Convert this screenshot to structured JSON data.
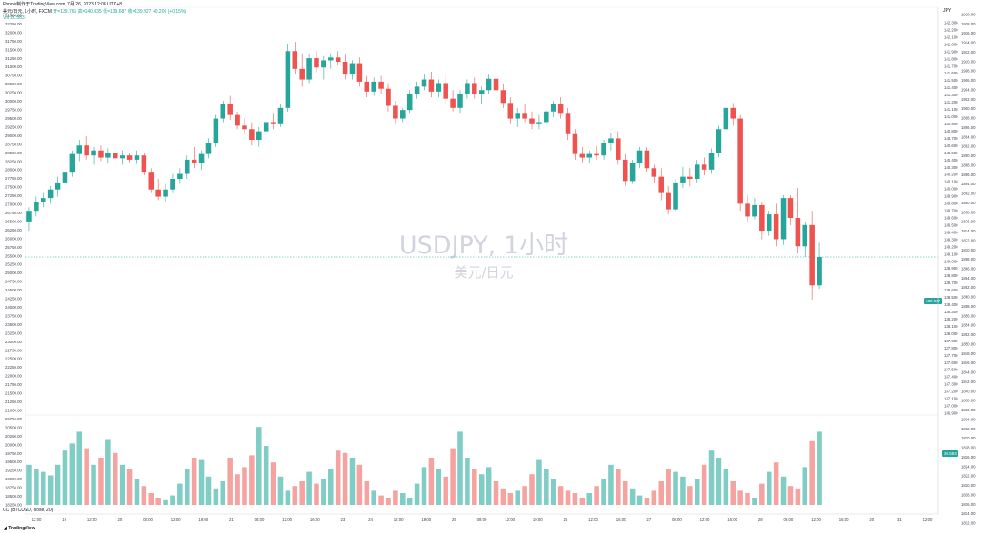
{
  "header": {
    "publisher": "Phnoix制作于TradingView.com, 7月 26, 2023 12:08 UTC+8",
    "symbol_line": "美元/日元, 1小时, FXCM",
    "ohlc": "开=139.765  高=140.035  低=139.687  收=139.927  +0.206 (+0.15%)",
    "volume_line": "Vol  20.583"
  },
  "watermark": {
    "title": "USDJPY, 1小时",
    "subtitle": "美元/日元"
  },
  "right_axis": {
    "label": "JPY"
  },
  "price_tag": "139.927",
  "price_tag_sub": "20.583",
  "oscillator": {
    "label": "CC (BTCUSD, close, 20)"
  },
  "logo": "TradingView",
  "colors": {
    "up": "#26a69a",
    "down": "#ef5350",
    "up_vol": "#7fcdc4",
    "down_vol": "#f5a3a1"
  },
  "chart_data": {
    "type": "candlestick",
    "left_axis_ticks": [
      "32500.00",
      "32250.00",
      "32000.00",
      "31750.00",
      "31500.00",
      "31250.00",
      "31000.00",
      "30750.00",
      "30500.00",
      "30250.00",
      "30000.00",
      "29750.00",
      "29500.00",
      "29250.00",
      "29000.00",
      "28750.00",
      "28500.00",
      "28250.00",
      "28000.00",
      "27750.00",
      "27500.00",
      "27250.00",
      "27000.00",
      "26750.00",
      "26500.00",
      "26250.00",
      "26000.00",
      "25750.00",
      "25500.00",
      "25250.00",
      "25000.00",
      "24750.00",
      "24500.00",
      "24250.00",
      "24000.00",
      "23750.00",
      "23500.00",
      "23250.00",
      "23000.00",
      "22750.00",
      "22500.00",
      "22250.00",
      "22000.00",
      "21750.00",
      "21500.00",
      "21250.00",
      "21000.00",
      "20750.00",
      "20500.00",
      "20250.00",
      "20000.00",
      "19750.00",
      "19500.00",
      "19250.00",
      "19000.00",
      "18750.00",
      "18500.00",
      "18250.00"
    ],
    "right_price_ticks": [
      "142.300",
      "142.200",
      "142.100",
      "142.000",
      "141.900",
      "141.800",
      "141.700",
      "141.600",
      "141.500",
      "141.400",
      "141.300",
      "141.200",
      "141.100",
      "141.000",
      "140.900",
      "140.800",
      "140.700",
      "140.600",
      "140.500",
      "140.400",
      "140.300",
      "140.200",
      "140.100",
      "140.000",
      "139.900",
      "139.800",
      "139.700",
      "139.600",
      "139.500",
      "139.400",
      "139.300",
      "139.200",
      "139.100",
      "139.000",
      "138.900",
      "138.800",
      "138.700",
      "138.600",
      "138.500",
      "138.400",
      "138.300",
      "138.200",
      "138.100",
      "138.000",
      "137.900",
      "137.800",
      "137.700",
      "137.600",
      "137.500",
      "137.400",
      "137.300",
      "137.200",
      "137.100",
      "137.000",
      "136.900"
    ],
    "right_osc_ticks": [
      "1920.00",
      "1918.00",
      "1916.00",
      "1914.00",
      "1912.00",
      "1910.00",
      "1908.00",
      "1906.00",
      "1904.00",
      "1902.00",
      "1900.00",
      "1898.00",
      "1896.00",
      "1894.00",
      "1892.00",
      "1890.00",
      "1888.00",
      "1886.00",
      "1884.00",
      "1882.00",
      "1880.00",
      "1878.00",
      "1876.00",
      "1874.00",
      "1872.00",
      "1870.00",
      "1868.00",
      "1866.00",
      "1864.00",
      "1862.00",
      "1860.00",
      "1858.00",
      "1856.00",
      "1854.00",
      "1852.00",
      "1850.00",
      "1848.00",
      "1846.00",
      "1844.00",
      "1842.00",
      "1840.00",
      "1838.00",
      "1836.00",
      "1834.00",
      "1832.00",
      "1830.00",
      "1828.00",
      "1826.00",
      "1824.00",
      "1822.00",
      "1820.00",
      "1818.00",
      "1816.00",
      "1814.00",
      "1812.00"
    ],
    "x_ticks": [
      "12:00",
      "19",
      "12:00",
      "20",
      "08:00",
      "12:00",
      "19:00",
      "21",
      "08:00",
      "12:00",
      "16:00",
      "23",
      "24",
      "12:00",
      "19:00",
      "25",
      "08:00",
      "12:00",
      "19:00",
      "26",
      "12:00",
      "16:00",
      "27",
      "08:00",
      "12:00",
      "16:00",
      "28",
      "08:00",
      "12:00",
      "16:00",
      "20",
      "31",
      "12:00"
    ],
    "ylim": [
      136.85,
      142.35
    ],
    "candles": [
      [
        139.55,
        139.75,
        139.42,
        139.7
      ],
      [
        139.7,
        139.9,
        139.62,
        139.82
      ],
      [
        139.82,
        139.95,
        139.75,
        139.88
      ],
      [
        139.88,
        140.05,
        139.8,
        140.0
      ],
      [
        140.0,
        140.18,
        139.9,
        140.1
      ],
      [
        140.1,
        140.3,
        140.02,
        140.25
      ],
      [
        140.25,
        140.55,
        140.18,
        140.5
      ],
      [
        140.5,
        140.7,
        140.4,
        140.62
      ],
      [
        140.62,
        140.75,
        140.42,
        140.48
      ],
      [
        140.48,
        140.6,
        140.35,
        140.55
      ],
      [
        140.55,
        140.62,
        140.4,
        140.45
      ],
      [
        140.45,
        140.58,
        140.38,
        140.52
      ],
      [
        140.52,
        140.6,
        140.4,
        140.44
      ],
      [
        140.44,
        140.55,
        140.35,
        140.48
      ],
      [
        140.48,
        140.52,
        140.38,
        140.42
      ],
      [
        140.42,
        140.55,
        140.36,
        140.48
      ],
      [
        140.48,
        140.52,
        140.2,
        140.25
      ],
      [
        140.25,
        140.3,
        139.95,
        140.0
      ],
      [
        140.0,
        140.15,
        139.85,
        139.9
      ],
      [
        139.9,
        140.08,
        139.82,
        140.0
      ],
      [
        140.0,
        140.22,
        139.95,
        140.15
      ],
      [
        140.15,
        140.3,
        140.08,
        140.22
      ],
      [
        140.22,
        140.48,
        140.15,
        140.42
      ],
      [
        140.42,
        140.6,
        140.3,
        140.38
      ],
      [
        140.38,
        140.55,
        140.28,
        140.5
      ],
      [
        140.5,
        140.72,
        140.44,
        140.65
      ],
      [
        140.65,
        141.05,
        140.6,
        141.0
      ],
      [
        141.0,
        141.25,
        140.95,
        141.2
      ],
      [
        141.2,
        141.32,
        140.98,
        141.05
      ],
      [
        141.05,
        141.1,
        140.85,
        140.9
      ],
      [
        140.9,
        141.0,
        140.78,
        140.85
      ],
      [
        140.85,
        140.95,
        140.62,
        140.7
      ],
      [
        140.7,
        140.88,
        140.6,
        140.82
      ],
      [
        140.82,
        141.05,
        140.75,
        140.95
      ],
      [
        140.95,
        141.08,
        140.85,
        140.92
      ],
      [
        140.92,
        141.2,
        140.88,
        141.15
      ],
      [
        141.15,
        142.05,
        141.1,
        141.95
      ],
      [
        141.95,
        142.08,
        141.62,
        141.7
      ],
      [
        141.7,
        141.92,
        141.45,
        141.55
      ],
      [
        141.55,
        141.9,
        141.5,
        141.85
      ],
      [
        141.85,
        141.95,
        141.65,
        141.72
      ],
      [
        141.72,
        141.88,
        141.55,
        141.82
      ],
      [
        141.82,
        141.92,
        141.7,
        141.86
      ],
      [
        141.86,
        141.95,
        141.75,
        141.8
      ],
      [
        141.8,
        141.9,
        141.55,
        141.62
      ],
      [
        141.62,
        141.82,
        141.55,
        141.78
      ],
      [
        141.78,
        141.86,
        141.45,
        141.52
      ],
      [
        141.52,
        141.6,
        141.3,
        141.38
      ],
      [
        141.38,
        141.58,
        141.32,
        141.52
      ],
      [
        141.52,
        141.6,
        141.35,
        141.42
      ],
      [
        141.42,
        141.5,
        141.1,
        141.18
      ],
      [
        141.18,
        141.25,
        140.92,
        141.0
      ],
      [
        141.0,
        141.15,
        140.95,
        141.12
      ],
      [
        141.12,
        141.4,
        141.08,
        141.35
      ],
      [
        141.35,
        141.52,
        141.28,
        141.45
      ],
      [
        141.45,
        141.62,
        141.4,
        141.55
      ],
      [
        141.55,
        141.66,
        141.3,
        141.38
      ],
      [
        141.38,
        141.55,
        141.3,
        141.5
      ],
      [
        141.5,
        141.62,
        141.2,
        141.28
      ],
      [
        141.28,
        141.4,
        141.1,
        141.15
      ],
      [
        141.15,
        141.4,
        141.08,
        141.35
      ],
      [
        141.35,
        141.55,
        141.28,
        141.5
      ],
      [
        141.5,
        141.58,
        141.28,
        141.35
      ],
      [
        141.35,
        141.45,
        141.2,
        141.4
      ],
      [
        141.4,
        141.62,
        141.35,
        141.56
      ],
      [
        141.56,
        141.75,
        141.3,
        141.4
      ],
      [
        141.4,
        141.48,
        141.15,
        141.22
      ],
      [
        141.22,
        141.3,
        140.92,
        141.0
      ],
      [
        141.0,
        141.15,
        140.88,
        141.08
      ],
      [
        141.08,
        141.2,
        140.95,
        141.0
      ],
      [
        141.0,
        141.1,
        140.85,
        140.92
      ],
      [
        140.92,
        141.05,
        140.85,
        140.95
      ],
      [
        140.95,
        141.15,
        140.9,
        141.1
      ],
      [
        141.1,
        141.25,
        141.02,
        141.2
      ],
      [
        141.2,
        141.3,
        141.0,
        141.08
      ],
      [
        141.08,
        141.15,
        140.7,
        140.78
      ],
      [
        140.78,
        140.85,
        140.42,
        140.5
      ],
      [
        140.5,
        140.6,
        140.38,
        140.45
      ],
      [
        140.45,
        140.55,
        140.38,
        140.5
      ],
      [
        140.5,
        140.62,
        140.42,
        140.48
      ],
      [
        140.48,
        140.7,
        140.42,
        140.65
      ],
      [
        140.65,
        140.8,
        140.55,
        140.72
      ],
      [
        140.72,
        140.82,
        140.35,
        140.42
      ],
      [
        140.42,
        140.5,
        140.05,
        140.12
      ],
      [
        140.12,
        140.42,
        140.08,
        140.38
      ],
      [
        140.38,
        140.6,
        140.3,
        140.55
      ],
      [
        140.55,
        140.6,
        140.25,
        140.3
      ],
      [
        140.3,
        140.35,
        140.1,
        140.18
      ],
      [
        140.18,
        140.3,
        139.85,
        139.95
      ],
      [
        139.95,
        140.05,
        139.65,
        139.72
      ],
      [
        139.72,
        140.15,
        139.68,
        140.1
      ],
      [
        140.1,
        140.32,
        140.02,
        140.18
      ],
      [
        140.18,
        140.3,
        140.05,
        140.15
      ],
      [
        140.15,
        140.42,
        140.1,
        140.35
      ],
      [
        140.35,
        140.45,
        140.2,
        140.28
      ],
      [
        140.28,
        140.58,
        140.22,
        140.52
      ],
      [
        140.52,
        140.9,
        140.45,
        140.85
      ],
      [
        140.85,
        141.22,
        140.8,
        141.15
      ],
      [
        141.15,
        141.22,
        140.9,
        141.0
      ],
      [
        141.0,
        141.05,
        139.7,
        139.8
      ],
      [
        139.8,
        139.92,
        139.55,
        139.62
      ],
      [
        139.62,
        139.88,
        139.58,
        139.78
      ],
      [
        139.78,
        139.82,
        139.3,
        139.42
      ],
      [
        139.42,
        139.7,
        139.35,
        139.65
      ],
      [
        139.65,
        139.8,
        139.2,
        139.3
      ],
      [
        139.3,
        139.92,
        139.22,
        139.88
      ],
      [
        139.88,
        139.92,
        139.5,
        139.6
      ],
      [
        139.6,
        140.02,
        139.1,
        139.2
      ],
      [
        139.2,
        139.55,
        139.05,
        139.5
      ],
      [
        139.5,
        139.7,
        138.45,
        138.65
      ],
      [
        138.65,
        139.25,
        138.6,
        139.05
      ]
    ],
    "volume_heights": [
      0.34,
      0.3,
      0.28,
      0.25,
      0.34,
      0.46,
      0.52,
      0.62,
      0.48,
      0.34,
      0.4,
      0.55,
      0.44,
      0.34,
      0.3,
      0.22,
      0.16,
      0.1,
      0.06,
      0.04,
      0.08,
      0.18,
      0.3,
      0.4,
      0.38,
      0.24,
      0.14,
      0.2,
      0.4,
      0.26,
      0.32,
      0.42,
      0.66,
      0.5,
      0.36,
      0.24,
      0.12,
      0.16,
      0.2,
      0.28,
      0.18,
      0.22,
      0.3,
      0.46,
      0.44,
      0.4,
      0.34,
      0.2,
      0.12,
      0.08,
      0.06,
      0.12,
      0.1,
      0.06,
      0.18,
      0.32,
      0.4,
      0.3,
      0.24,
      0.48,
      0.62,
      0.4,
      0.3,
      0.26,
      0.32,
      0.2,
      0.14,
      0.1,
      0.12,
      0.16,
      0.26,
      0.38,
      0.3,
      0.22,
      0.16,
      0.12,
      0.1,
      0.06,
      0.1,
      0.16,
      0.22,
      0.34,
      0.3,
      0.2,
      0.14,
      0.08,
      0.06,
      0.12,
      0.2,
      0.3,
      0.28,
      0.24,
      0.16,
      0.22,
      0.34,
      0.46,
      0.4,
      0.3,
      0.2,
      0.12,
      0.1,
      0.06,
      0.18,
      0.28,
      0.36,
      0.24,
      0.16,
      0.14,
      0.32,
      0.54,
      0.62,
      0.2,
      0.28
    ]
  }
}
